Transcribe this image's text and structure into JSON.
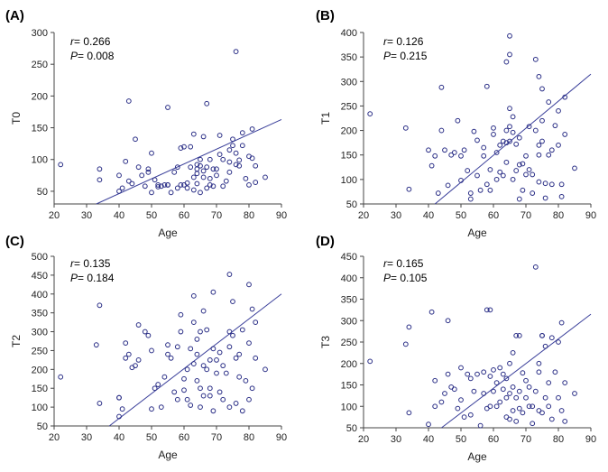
{
  "chart_data": [
    {
      "type": "scatter",
      "panel": "(A)",
      "xlabel": "Age",
      "ylabel": "T0",
      "xlim": [
        20,
        90
      ],
      "ylim": [
        30,
        300
      ],
      "xticks": [
        20,
        30,
        40,
        50,
        60,
        70,
        80,
        90
      ],
      "yticks": [
        50,
        100,
        150,
        200,
        250,
        300
      ],
      "r_label": "r",
      "r_value": "= 0.266",
      "p_label": "P",
      "p_value": "= 0.008",
      "fit_line": [
        [
          33,
          30
        ],
        [
          90,
          163
        ]
      ],
      "x": [
        22,
        34,
        34,
        40,
        40,
        41,
        42,
        43,
        44,
        45,
        46,
        47,
        48,
        49,
        49,
        50,
        50,
        51,
        52,
        52,
        53,
        54,
        55,
        55,
        56,
        57,
        58,
        58,
        59,
        59,
        60,
        60,
        61,
        61,
        62,
        62,
        63,
        63,
        63,
        64,
        64,
        64,
        64,
        65,
        65,
        65,
        66,
        66,
        66,
        67,
        67,
        68,
        68,
        68,
        69,
        69,
        70,
        70,
        71,
        71,
        72,
        72,
        73,
        74,
        74,
        74,
        75,
        75,
        76,
        76,
        77,
        77,
        78,
        78,
        79,
        80,
        80,
        81,
        81,
        82,
        82,
        85,
        43,
        55,
        67,
        76
      ],
      "y": [
        92,
        85,
        68,
        50,
        75,
        55,
        97,
        66,
        62,
        132,
        88,
        75,
        58,
        80,
        85,
        48,
        110,
        68,
        60,
        57,
        58,
        60,
        60,
        60,
        48,
        80,
        55,
        88,
        118,
        60,
        60,
        120,
        55,
        63,
        88,
        120,
        52,
        72,
        140,
        62,
        78,
        85,
        92,
        48,
        90,
        100,
        72,
        82,
        136,
        55,
        88,
        60,
        70,
        100,
        58,
        85,
        75,
        85,
        108,
        138,
        58,
        100,
        66,
        80,
        96,
        115,
        132,
        122,
        92,
        110,
        90,
        99,
        122,
        142,
        70,
        105,
        60,
        148,
        102,
        64,
        90,
        72,
        192,
        182,
        188,
        270
      ]
    },
    {
      "type": "scatter",
      "panel": "(B)",
      "xlabel": "Age",
      "ylabel": "T1",
      "xlim": [
        20,
        90
      ],
      "ylim": [
        50,
        400
      ],
      "xticks": [
        20,
        30,
        40,
        50,
        60,
        70,
        80,
        90
      ],
      "yticks": [
        50,
        100,
        150,
        200,
        250,
        300,
        350,
        400
      ],
      "r_label": "r",
      "r_value": "= 0.126",
      "p_label": "P",
      "p_value": "= 0.215",
      "fit_line": [
        [
          42,
          50
        ],
        [
          90,
          315
        ]
      ],
      "x": [
        22,
        33,
        34,
        40,
        41,
        42,
        43,
        44,
        45,
        46,
        47,
        48,
        49,
        50,
        50,
        51,
        52,
        53,
        53,
        54,
        55,
        55,
        56,
        57,
        57,
        58,
        59,
        59,
        60,
        60,
        61,
        61,
        62,
        62,
        63,
        63,
        64,
        64,
        64,
        65,
        65,
        65,
        66,
        66,
        66,
        67,
        67,
        68,
        68,
        68,
        69,
        69,
        70,
        70,
        71,
        71,
        72,
        72,
        73,
        74,
        74,
        74,
        75,
        75,
        76,
        76,
        77,
        77,
        78,
        78,
        79,
        80,
        80,
        81,
        81,
        82,
        82,
        85,
        44,
        58,
        64,
        65,
        65,
        73,
        74,
        75
      ],
      "y": [
        234,
        205,
        80,
        160,
        128,
        148,
        72,
        200,
        160,
        88,
        150,
        155,
        220,
        98,
        148,
        160,
        118,
        60,
        72,
        198,
        108,
        180,
        78,
        148,
        165,
        90,
        78,
        120,
        192,
        205,
        155,
        100,
        115,
        170,
        108,
        178,
        135,
        175,
        200,
        208,
        245,
        178,
        100,
        196,
        228,
        118,
        172,
        60,
        130,
        185,
        78,
        132,
        110,
        148,
        120,
        208,
        72,
        110,
        200,
        95,
        150,
        170,
        178,
        220,
        62,
        92,
        150,
        258,
        160,
        90,
        210,
        170,
        240,
        90,
        65,
        192,
        268,
        123,
        288,
        290,
        340,
        355,
        393,
        345,
        310,
        285
      ]
    },
    {
      "type": "scatter",
      "panel": "(C)",
      "xlabel": "Age",
      "ylabel": "T2",
      "xlim": [
        20,
        90
      ],
      "ylim": [
        50,
        500
      ],
      "xticks": [
        20,
        30,
        40,
        50,
        60,
        70,
        80,
        90
      ],
      "yticks": [
        50,
        100,
        150,
        200,
        250,
        300,
        350,
        400,
        450,
        500
      ],
      "r_label": "r",
      "r_value": "= 0.135",
      "p_label": "P",
      "p_value": "= 0.184",
      "fit_line": [
        [
          37,
          50
        ],
        [
          90,
          400
        ]
      ],
      "x": [
        22,
        33,
        34,
        34,
        40,
        40,
        42,
        42,
        43,
        44,
        45,
        46,
        48,
        49,
        50,
        50,
        51,
        52,
        53,
        54,
        55,
        55,
        56,
        57,
        58,
        58,
        59,
        59,
        60,
        60,
        61,
        61,
        62,
        62,
        63,
        63,
        64,
        64,
        64,
        65,
        65,
        65,
        66,
        66,
        66,
        67,
        67,
        68,
        68,
        68,
        69,
        69,
        70,
        70,
        71,
        71,
        72,
        72,
        73,
        74,
        74,
        74,
        75,
        75,
        76,
        76,
        77,
        77,
        78,
        78,
        79,
        80,
        80,
        81,
        81,
        82,
        82,
        85,
        46,
        63,
        69,
        74,
        80,
        40,
        41
      ],
      "y": [
        180,
        265,
        370,
        110,
        125,
        75,
        230,
        270,
        240,
        205,
        210,
        225,
        300,
        290,
        95,
        250,
        150,
        160,
        100,
        180,
        265,
        240,
        230,
        140,
        120,
        260,
        300,
        345,
        145,
        175,
        120,
        200,
        105,
        255,
        215,
        395,
        170,
        240,
        280,
        100,
        150,
        300,
        130,
        210,
        355,
        200,
        305,
        150,
        130,
        225,
        255,
        90,
        190,
        225,
        140,
        245,
        120,
        210,
        190,
        100,
        260,
        300,
        290,
        380,
        110,
        230,
        240,
        180,
        305,
        90,
        170,
        270,
        425,
        150,
        360,
        230,
        325,
        200,
        318,
        325,
        405,
        452,
        120,
        125,
        95
      ]
    },
    {
      "type": "scatter",
      "panel": "(D)",
      "xlabel": "Age",
      "ylabel": "T3",
      "xlim": [
        20,
        90
      ],
      "ylim": [
        50,
        450
      ],
      "xticks": [
        20,
        30,
        40,
        50,
        60,
        70,
        80,
        90
      ],
      "yticks": [
        50,
        100,
        150,
        200,
        250,
        300,
        350,
        400,
        450
      ],
      "r_label": "r",
      "r_value": "= 0.165",
      "p_label": "P",
      "p_value": "= 0.105",
      "fit_line": [
        [
          44,
          50
        ],
        [
          90,
          315
        ]
      ],
      "x": [
        22,
        33,
        34,
        34,
        40,
        42,
        42,
        44,
        45,
        46,
        47,
        48,
        49,
        50,
        50,
        51,
        52,
        53,
        53,
        54,
        55,
        56,
        57,
        57,
        58,
        59,
        59,
        60,
        60,
        61,
        61,
        62,
        62,
        63,
        63,
        64,
        64,
        64,
        65,
        65,
        65,
        66,
        66,
        66,
        67,
        67,
        68,
        68,
        68,
        69,
        69,
        70,
        70,
        71,
        71,
        72,
        72,
        73,
        74,
        74,
        74,
        75,
        75,
        76,
        76,
        77,
        77,
        78,
        78,
        79,
        80,
        80,
        81,
        81,
        82,
        82,
        85,
        41,
        46,
        58,
        59,
        67,
        73,
        75
      ],
      "y": [
        205,
        245,
        285,
        85,
        58,
        160,
        100,
        110,
        130,
        175,
        145,
        140,
        95,
        115,
        190,
        75,
        175,
        165,
        80,
        135,
        175,
        55,
        130,
        180,
        95,
        100,
        170,
        135,
        185,
        155,
        100,
        110,
        190,
        140,
        175,
        75,
        120,
        165,
        70,
        130,
        200,
        90,
        145,
        225,
        65,
        120,
        265,
        95,
        135,
        178,
        85,
        120,
        160,
        100,
        145,
        60,
        100,
        135,
        180,
        90,
        200,
        85,
        265,
        120,
        240,
        100,
        155,
        260,
        70,
        180,
        120,
        250,
        90,
        295,
        65,
        155,
        130,
        320,
        300,
        325,
        325,
        265,
        425,
        265
      ]
    }
  ]
}
